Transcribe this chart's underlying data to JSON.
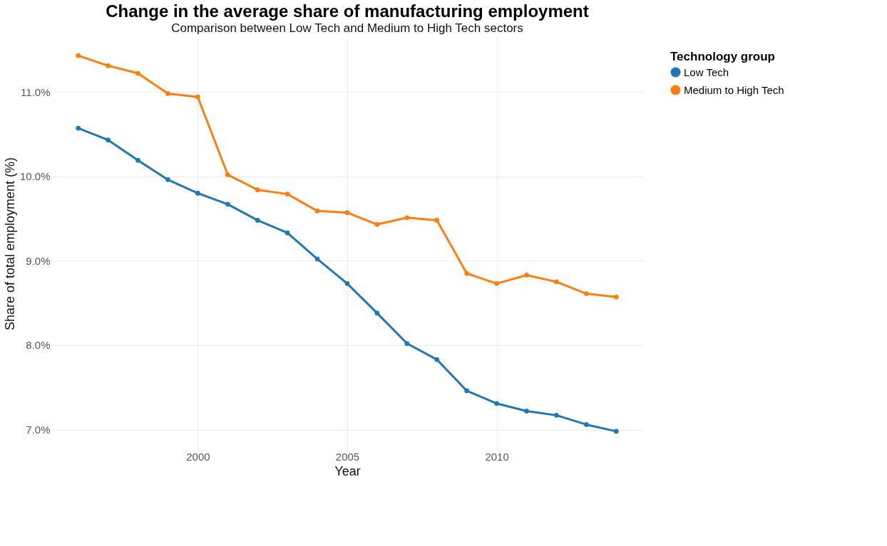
{
  "chart_data": {
    "type": "line",
    "title": "Change in the average share of manufacturing employment",
    "subtitle": "Comparison between Low Tech and Medium to High Tech sectors",
    "xlabel": "Year",
    "ylabel": "Share of total employment (%)",
    "legend_title": "Technology group",
    "x": [
      1996,
      1997,
      1998,
      1999,
      2000,
      2001,
      2002,
      2003,
      2004,
      2005,
      2006,
      2007,
      2008,
      2009,
      2010,
      2011,
      2012,
      2013,
      2014
    ],
    "series": [
      {
        "name": "Low Tech",
        "color": "#1f77b4",
        "values": [
          10.57,
          10.43,
          10.19,
          9.96,
          9.8,
          9.67,
          9.48,
          9.33,
          9.02,
          8.73,
          8.38,
          8.02,
          7.83,
          7.46,
          7.31,
          7.22,
          7.17,
          7.06,
          6.98
        ]
      },
      {
        "name": "Medium to High Tech",
        "color": "#ff7f0e",
        "values": [
          11.43,
          11.31,
          11.22,
          10.98,
          10.94,
          10.02,
          9.84,
          9.79,
          9.59,
          9.57,
          9.43,
          9.51,
          9.48,
          8.85,
          8.73,
          8.83,
          8.75,
          8.61,
          8.57
        ]
      }
    ],
    "xlim": [
      1995.1,
      2014.9
    ],
    "xticks": [
      2000,
      2005,
      2010
    ],
    "ylim": [
      6.76,
      11.65
    ],
    "yticks": [
      {
        "value": 7,
        "label": "7.0%"
      },
      {
        "value": 8,
        "label": "8.0%"
      },
      {
        "value": 9,
        "label": "9.0%"
      },
      {
        "value": 10,
        "label": "10.0%"
      },
      {
        "value": 11,
        "label": "11.0%"
      }
    ],
    "grid": true,
    "legend": "right",
    "marker": "circle",
    "line_style": "solid"
  }
}
